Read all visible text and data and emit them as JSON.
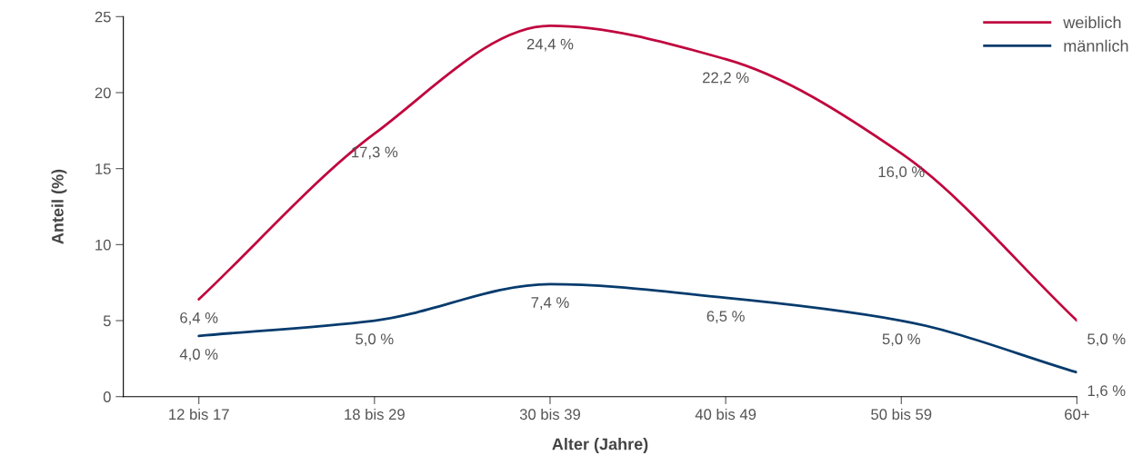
{
  "chart_data": {
    "type": "line",
    "xlabel": "Alter (Jahre)",
    "ylabel": "Anteil (%)",
    "categories": [
      "12 bis 17",
      "18 bis 29",
      "30 bis 39",
      "40 bis 49",
      "50 bis 59",
      "60+"
    ],
    "series": [
      {
        "name": "weiblich",
        "color": "#c0073f",
        "values": [
          6.4,
          17.3,
          24.4,
          22.2,
          16.0,
          5.0
        ],
        "value_labels": [
          "6,4 %",
          "17,3 %",
          "24,4 %",
          "22,2 %",
          "16,0 %",
          "5,0 %"
        ]
      },
      {
        "name": "männlich",
        "color": "#063b6d",
        "values": [
          4.0,
          5.0,
          7.4,
          6.5,
          5.0,
          1.6
        ],
        "value_labels": [
          "4,0 %",
          "5,0 %",
          "7,4 %",
          "6,5 %",
          "5,0 %",
          "1,6 %"
        ]
      }
    ],
    "ylim": [
      0,
      25
    ],
    "yticks": [
      0,
      5,
      10,
      15,
      20,
      25
    ],
    "grid": false,
    "legend": "top right",
    "marker": "none",
    "line_style": "solid"
  }
}
